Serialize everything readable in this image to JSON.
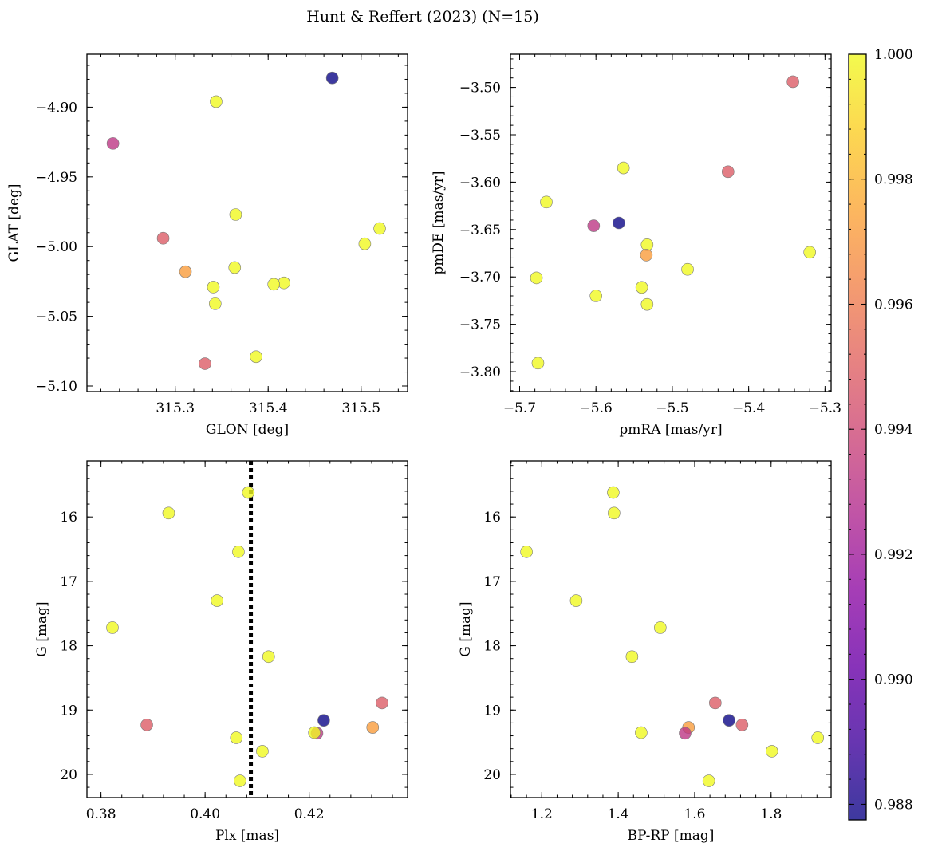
{
  "figure": {
    "title": "Hunt & Reffert (2023) (N=15)",
    "colormap": "plasma",
    "colorbar": {
      "vmin": 0.98775,
      "vmax": 1.0,
      "ticks": [
        0.988,
        0.99,
        0.992,
        0.994,
        0.996,
        0.998,
        1.0
      ],
      "tick_labels": [
        "0.988",
        "0.990",
        "0.992",
        "0.994",
        "0.996",
        "0.998",
        "1.000"
      ]
    }
  },
  "chart_data": [
    {
      "type": "scatter",
      "id": "glon-glat",
      "xlabel": "GLON [deg]",
      "ylabel": "GLAT [deg]",
      "xlim": [
        315.205,
        315.55
      ],
      "ylim": [
        -5.104,
        -4.862
      ],
      "y_inverted": false,
      "xticks": [
        315.3,
        315.4,
        315.5
      ],
      "xtick_labels": [
        "315.3",
        "315.4",
        "315.5"
      ],
      "yticks": [
        -5.1,
        -5.05,
        -5.0,
        -4.95,
        -4.9
      ],
      "ytick_labels": [
        "−5.10",
        "−5.05",
        "−5.00",
        "−4.95",
        "−4.90"
      ],
      "x_minor": 0.02,
      "y_minor": 0.01,
      "points": [
        {
          "x": 315.469,
          "y": -4.879,
          "c": 0.98775
        },
        {
          "x": 315.344,
          "y": -4.896,
          "c": 1.0
        },
        {
          "x": 315.233,
          "y": -4.926,
          "c": 0.9932
        },
        {
          "x": 315.365,
          "y": -4.977,
          "c": 1.0
        },
        {
          "x": 315.52,
          "y": -4.987,
          "c": 1.0
        },
        {
          "x": 315.504,
          "y": -4.998,
          "c": 1.0
        },
        {
          "x": 315.287,
          "y": -4.994,
          "c": 0.9948
        },
        {
          "x": 315.311,
          "y": -5.018,
          "c": 0.9972
        },
        {
          "x": 315.364,
          "y": -5.015,
          "c": 1.0
        },
        {
          "x": 315.417,
          "y": -5.026,
          "c": 1.0
        },
        {
          "x": 315.406,
          "y": -5.027,
          "c": 1.0
        },
        {
          "x": 315.341,
          "y": -5.029,
          "c": 1.0
        },
        {
          "x": 315.343,
          "y": -5.041,
          "c": 1.0
        },
        {
          "x": 315.387,
          "y": -5.079,
          "c": 1.0
        },
        {
          "x": 315.332,
          "y": -5.084,
          "c": 0.9948
        }
      ]
    },
    {
      "type": "scatter",
      "id": "pmra-pmde",
      "xlabel": "pmRA [mas/yr]",
      "ylabel": "pmDE [mas/yr]",
      "xlim": [
        -5.712,
        -5.292
      ],
      "ylim": [
        -3.821,
        -3.465
      ],
      "y_inverted": false,
      "xticks": [
        -5.7,
        -5.6,
        -5.5,
        -5.4,
        -5.3
      ],
      "xtick_labels": [
        "−5.7",
        "−5.6",
        "−5.5",
        "−5.4",
        "−5.3"
      ],
      "yticks": [
        -3.8,
        -3.75,
        -3.7,
        -3.65,
        -3.6,
        -3.55,
        -3.5
      ],
      "ytick_labels": [
        "−3.80",
        "−3.75",
        "−3.70",
        "−3.65",
        "−3.60",
        "−3.55",
        "−3.50"
      ],
      "x_minor": 0.02,
      "y_minor": 0.01,
      "points": [
        {
          "x": -5.342,
          "y": -3.494,
          "c": 0.9948
        },
        {
          "x": -5.564,
          "y": -3.585,
          "c": 1.0
        },
        {
          "x": -5.427,
          "y": -3.589,
          "c": 0.9948
        },
        {
          "x": -5.665,
          "y": -3.621,
          "c": 1.0
        },
        {
          "x": -5.57,
          "y": -3.643,
          "c": 0.98775
        },
        {
          "x": -5.603,
          "y": -3.646,
          "c": 0.9932
        },
        {
          "x": -5.533,
          "y": -3.666,
          "c": 1.0
        },
        {
          "x": -5.32,
          "y": -3.674,
          "c": 1.0
        },
        {
          "x": -5.534,
          "y": -3.677,
          "c": 0.9972
        },
        {
          "x": -5.48,
          "y": -3.692,
          "c": 1.0
        },
        {
          "x": -5.678,
          "y": -3.701,
          "c": 1.0
        },
        {
          "x": -5.54,
          "y": -3.711,
          "c": 1.0
        },
        {
          "x": -5.6,
          "y": -3.72,
          "c": 1.0
        },
        {
          "x": -5.533,
          "y": -3.729,
          "c": 1.0
        },
        {
          "x": -5.676,
          "y": -3.791,
          "c": 1.0
        }
      ]
    },
    {
      "type": "scatter",
      "id": "plx-g",
      "xlabel": "Plx [mas]",
      "ylabel": "G [mag]",
      "xlim": [
        0.3773,
        0.4389
      ],
      "ylim": [
        20.36,
        15.13
      ],
      "y_inverted": true,
      "xticks": [
        0.38,
        0.4,
        0.42
      ],
      "xtick_labels": [
        "0.38",
        "0.40",
        "0.42"
      ],
      "yticks": [
        16,
        17,
        18,
        19,
        20
      ],
      "ytick_labels": [
        "16",
        "17",
        "18",
        "19",
        "20"
      ],
      "x_minor": 0.004,
      "y_minor": 0.2,
      "reference_line": {
        "x": 0.4088,
        "style": "dotted"
      },
      "points": [
        {
          "x": 0.4083,
          "y": 15.62,
          "c": 1.0
        },
        {
          "x": 0.393,
          "y": 15.94,
          "c": 1.0
        },
        {
          "x": 0.4064,
          "y": 16.54,
          "c": 1.0
        },
        {
          "x": 0.4023,
          "y": 17.3,
          "c": 1.0
        },
        {
          "x": 0.3822,
          "y": 17.72,
          "c": 1.0
        },
        {
          "x": 0.4122,
          "y": 18.17,
          "c": 1.0
        },
        {
          "x": 0.434,
          "y": 18.89,
          "c": 0.9948
        },
        {
          "x": 0.4228,
          "y": 19.16,
          "c": 0.98775
        },
        {
          "x": 0.3888,
          "y": 19.23,
          "c": 0.9948
        },
        {
          "x": 0.4322,
          "y": 19.27,
          "c": 0.9972
        },
        {
          "x": 0.4215,
          "y": 19.36,
          "c": 0.9932
        },
        {
          "x": 0.421,
          "y": 19.35,
          "c": 1.0
        },
        {
          "x": 0.406,
          "y": 19.43,
          "c": 1.0
        },
        {
          "x": 0.411,
          "y": 19.64,
          "c": 1.0
        },
        {
          "x": 0.4067,
          "y": 20.1,
          "c": 1.0
        }
      ]
    },
    {
      "type": "scatter",
      "id": "bprp-g",
      "xlabel": "BP-RP [mag]",
      "ylabel": "G [mag]",
      "xlim": [
        1.118,
        1.957
      ],
      "ylim": [
        20.36,
        15.13
      ],
      "y_inverted": true,
      "xticks": [
        1.2,
        1.4,
        1.6,
        1.8
      ],
      "xtick_labels": [
        "1.2",
        "1.4",
        "1.6",
        "1.8"
      ],
      "yticks": [
        16,
        17,
        18,
        19,
        20
      ],
      "ytick_labels": [
        "16",
        "17",
        "18",
        "19",
        "20"
      ],
      "x_minor": 0.04,
      "y_minor": 0.2,
      "points": [
        {
          "x": 1.387,
          "y": 15.62,
          "c": 1.0
        },
        {
          "x": 1.389,
          "y": 15.94,
          "c": 1.0
        },
        {
          "x": 1.16,
          "y": 16.54,
          "c": 1.0
        },
        {
          "x": 1.29,
          "y": 17.3,
          "c": 1.0
        },
        {
          "x": 1.51,
          "y": 17.72,
          "c": 1.0
        },
        {
          "x": 1.436,
          "y": 18.17,
          "c": 1.0
        },
        {
          "x": 1.654,
          "y": 18.89,
          "c": 0.9948
        },
        {
          "x": 1.69,
          "y": 19.16,
          "c": 0.98775
        },
        {
          "x": 1.724,
          "y": 19.23,
          "c": 0.9948
        },
        {
          "x": 1.584,
          "y": 19.27,
          "c": 0.9972
        },
        {
          "x": 1.575,
          "y": 19.36,
          "c": 0.9932
        },
        {
          "x": 1.46,
          "y": 19.35,
          "c": 1.0
        },
        {
          "x": 1.922,
          "y": 19.43,
          "c": 1.0
        },
        {
          "x": 1.802,
          "y": 19.64,
          "c": 1.0
        },
        {
          "x": 1.637,
          "y": 20.1,
          "c": 1.0
        }
      ]
    }
  ]
}
